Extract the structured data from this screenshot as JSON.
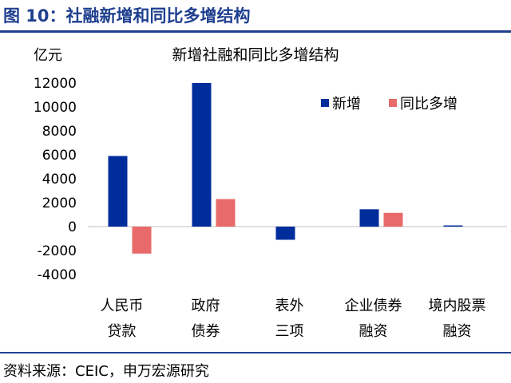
{
  "figure": {
    "title": "图 10：社融新增和同比多增结构",
    "source": "资料来源：CEIC，申万宏源研究"
  },
  "chart_data": {
    "type": "bar",
    "title": "新增社融和同比多增结构",
    "unit_label": "亿元",
    "xlabel": "",
    "ylabel": "",
    "categories": [
      [
        "人民币",
        "贷款"
      ],
      [
        "政府",
        "债券"
      ],
      [
        "表外",
        "三项"
      ],
      [
        "企业债券",
        "融资"
      ],
      [
        "境内股票",
        "融资"
      ]
    ],
    "series": [
      {
        "name": "新增",
        "color": "#002d9c",
        "values": [
          5900,
          12000,
          -1100,
          1450,
          100
        ]
      },
      {
        "name": "同比多增",
        "color": "#e96a6a",
        "values": [
          -2250,
          2300,
          0,
          1150,
          0
        ]
      }
    ],
    "ylim": [
      -4000,
      12000
    ],
    "yticks": [
      -4000,
      -2000,
      0,
      2000,
      4000,
      6000,
      8000,
      10000,
      12000
    ],
    "grid": false,
    "legend_position": "top-right"
  }
}
